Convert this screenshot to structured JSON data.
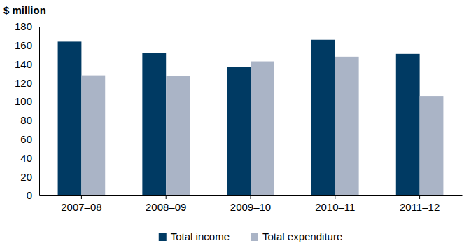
{
  "chart_data": {
    "type": "bar",
    "y_label": "$ million",
    "categories": [
      "2007–08",
      "2008–09",
      "2009–10",
      "2010–11",
      "2011–12"
    ],
    "series": [
      {
        "name": "Total income",
        "color": "#003a63",
        "values": [
          164,
          152,
          137,
          166,
          151
        ]
      },
      {
        "name": "Total expenditure",
        "color": "#aab4c6",
        "values": [
          128,
          127,
          143,
          148,
          106
        ]
      }
    ],
    "ylim": [
      0,
      180
    ],
    "yticks": [
      0,
      20,
      40,
      60,
      80,
      100,
      120,
      140,
      160,
      180
    ],
    "grid": false,
    "legend": "bottom"
  }
}
